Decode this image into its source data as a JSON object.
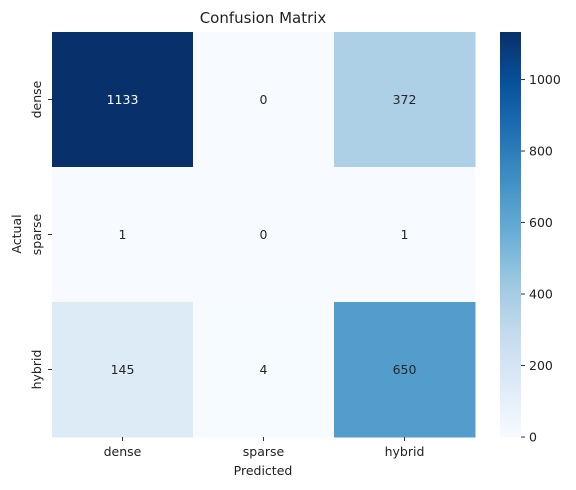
{
  "chart_data": {
    "type": "heatmap",
    "title": "Confusion Matrix",
    "xlabel": "Predicted",
    "ylabel": "Actual",
    "x_categories": [
      "dense",
      "sparse",
      "hybrid"
    ],
    "y_categories": [
      "dense",
      "sparse",
      "hybrid"
    ],
    "values": [
      [
        1133,
        0,
        372
      ],
      [
        1,
        0,
        1
      ],
      [
        145,
        4,
        650
      ]
    ],
    "color_scale": {
      "min": 0,
      "max": 1133,
      "colormap": "Blues",
      "low_color": "#f7fbff",
      "high_color": "#08306b",
      "ticks": [
        0,
        200,
        400,
        600,
        800,
        1000
      ]
    },
    "annotations": true
  }
}
